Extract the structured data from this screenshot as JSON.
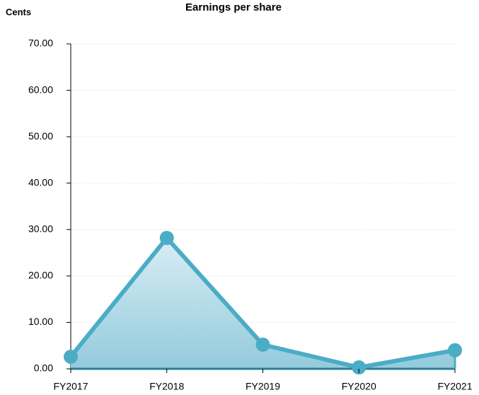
{
  "chart_data": {
    "type": "area",
    "title": "Earnings per share",
    "y_label": "Cents",
    "categories": [
      "FY2017",
      "FY2018",
      "FY2019",
      "FY2020",
      "FY2021"
    ],
    "values": [
      2.6,
      28.2,
      5.2,
      0.3,
      4.0
    ],
    "color": "#4bacc6",
    "ylim": [
      0,
      70
    ],
    "yticks": [
      {
        "value": 0,
        "label": "0.00"
      },
      {
        "value": 10,
        "label": "10.00"
      },
      {
        "value": 20,
        "label": "20.00"
      },
      {
        "value": 30,
        "label": "30.00"
      },
      {
        "value": 40,
        "label": "40.00"
      },
      {
        "value": 50,
        "label": "50.00"
      },
      {
        "value": 60,
        "label": "60.00"
      },
      {
        "value": 70,
        "label": "70.00"
      }
    ],
    "grid": true
  }
}
